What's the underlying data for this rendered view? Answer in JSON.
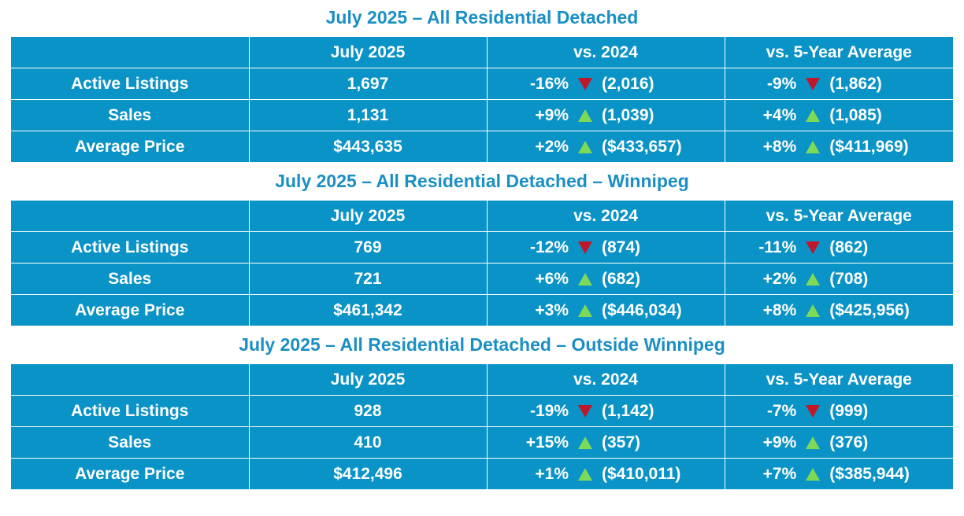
{
  "colors": {
    "title": "#1a8fc4",
    "table_bg": "#0a93c7",
    "down_arrow": "#c0182a",
    "up_arrow": "#7ed957"
  },
  "sections": [
    {
      "title": "July 2025 – All Residential Detached",
      "headers": [
        "",
        "July 2025",
        "vs. 2024",
        "vs. 5-Year Average"
      ],
      "rows": [
        {
          "label": "Active Listings",
          "current": "1,697",
          "vs_2024": {
            "pct": "-16%",
            "dir": "down",
            "prior": "(2,016)"
          },
          "vs_5yr": {
            "pct": "-9%",
            "dir": "down",
            "prior": "(1,862)"
          }
        },
        {
          "label": "Sales",
          "current": "1,131",
          "vs_2024": {
            "pct": "+9%",
            "dir": "up",
            "prior": "(1,039)"
          },
          "vs_5yr": {
            "pct": "+4%",
            "dir": "up",
            "prior": "(1,085)"
          }
        },
        {
          "label": "Average Price",
          "current": "$443,635",
          "vs_2024": {
            "pct": "+2%",
            "dir": "up",
            "prior": "($433,657)"
          },
          "vs_5yr": {
            "pct": "+8%",
            "dir": "up",
            "prior": "($411,969)"
          }
        }
      ]
    },
    {
      "title": "July 2025 – All Residential Detached – Winnipeg",
      "headers": [
        "",
        "July 2025",
        "vs. 2024",
        "vs. 5-Year Average"
      ],
      "rows": [
        {
          "label": "Active Listings",
          "current": "769",
          "vs_2024": {
            "pct": "-12%",
            "dir": "down",
            "prior": "(874)"
          },
          "vs_5yr": {
            "pct": "-11%",
            "dir": "down",
            "prior": "(862)"
          }
        },
        {
          "label": "Sales",
          "current": "721",
          "vs_2024": {
            "pct": "+6%",
            "dir": "up",
            "prior": "(682)"
          },
          "vs_5yr": {
            "pct": "+2%",
            "dir": "up",
            "prior": "(708)"
          }
        },
        {
          "label": "Average Price",
          "current": "$461,342",
          "vs_2024": {
            "pct": "+3%",
            "dir": "up",
            "prior": "($446,034)"
          },
          "vs_5yr": {
            "pct": "+8%",
            "dir": "up",
            "prior": "($425,956)"
          }
        }
      ]
    },
    {
      "title": "July 2025 – All Residential Detached – Outside Winnipeg",
      "headers": [
        "",
        "July 2025",
        "vs. 2024",
        "vs. 5-Year Average"
      ],
      "rows": [
        {
          "label": "Active Listings",
          "current": "928",
          "vs_2024": {
            "pct": "-19%",
            "dir": "down",
            "prior": "(1,142)"
          },
          "vs_5yr": {
            "pct": "-7%",
            "dir": "down",
            "prior": "(999)"
          }
        },
        {
          "label": "Sales",
          "current": "410",
          "vs_2024": {
            "pct": "+15%",
            "dir": "up",
            "prior": "(357)"
          },
          "vs_5yr": {
            "pct": "+9%",
            "dir": "up",
            "prior": "(376)"
          }
        },
        {
          "label": "Average Price",
          "current": "$412,496",
          "vs_2024": {
            "pct": "+1%",
            "dir": "up",
            "prior": "($410,011)"
          },
          "vs_5yr": {
            "pct": "+7%",
            "dir": "up",
            "prior": "($385,944)"
          }
        }
      ]
    }
  ]
}
